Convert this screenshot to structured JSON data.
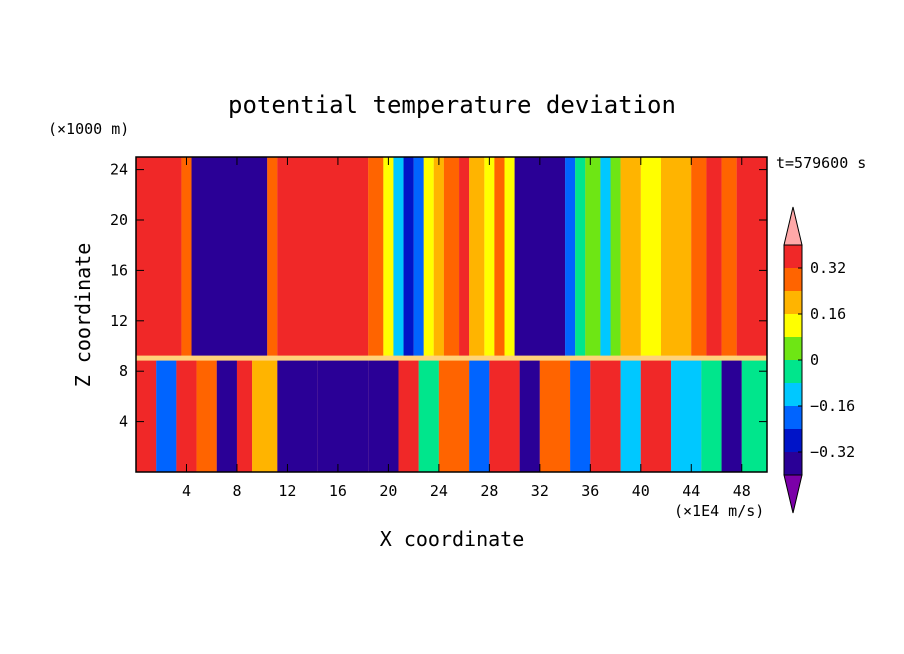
{
  "chart_data": {
    "type": "heatmap",
    "title": "potential temperature deviation",
    "xlabel": "X coordinate",
    "ylabel": "Z coordinate",
    "x_unit": "(×1E4 m/s)",
    "y_unit": "(×1000 m)",
    "time_label": "t=579600 s",
    "xlim": [
      0,
      50
    ],
    "ylim": [
      0,
      25
    ],
    "x_ticks": [
      4,
      8,
      12,
      16,
      20,
      24,
      28,
      32,
      36,
      40,
      44,
      48
    ],
    "y_ticks": [
      4,
      8,
      12,
      16,
      20,
      24
    ],
    "colorbar": {
      "levels": [
        -0.4,
        -0.32,
        -0.24,
        -0.16,
        -0.08,
        0,
        0.08,
        0.16,
        0.24,
        0.32,
        0.4
      ],
      "colors": [
        "#7b00a8",
        "#2a0096",
        "#0014c8",
        "#0064ff",
        "#00c8ff",
        "#00e68c",
        "#6ee614",
        "#ffff00",
        "#ffb400",
        "#ff6400",
        "#f02828",
        "#ffa8a8"
      ],
      "tick_labels": [
        "0.32",
        "0.16",
        "0",
        "-0.16",
        "-0.32"
      ],
      "tick_values": [
        0.32,
        0.16,
        0,
        -0.16,
        -0.32
      ],
      "extend": "both"
    },
    "upper_layer": {
      "z_range": [
        9,
        25
      ],
      "columns": [
        {
          "x": [
            0,
            3.6
          ],
          "value": 0.36
        },
        {
          "x": [
            3.6,
            4.4
          ],
          "value": 0.3
        },
        {
          "x": [
            4.4,
            10.4
          ],
          "value": -0.4
        },
        {
          "x": [
            10.4,
            11.2
          ],
          "value": 0.25
        },
        {
          "x": [
            11.2,
            18.4
          ],
          "value": 0.36
        },
        {
          "x": [
            18.4,
            19.6
          ],
          "value": 0.3
        },
        {
          "x": [
            19.6,
            20.4
          ],
          "value": 0.14
        },
        {
          "x": [
            20.4,
            21.2
          ],
          "value": -0.1
        },
        {
          "x": [
            21.2,
            22.0
          ],
          "value": -0.32
        },
        {
          "x": [
            22.0,
            22.8
          ],
          "value": -0.18
        },
        {
          "x": [
            22.8,
            23.6
          ],
          "value": 0.08
        },
        {
          "x": [
            23.6,
            24.4
          ],
          "value": 0.2
        },
        {
          "x": [
            24.4,
            25.6
          ],
          "value": 0.3
        },
        {
          "x": [
            25.6,
            26.4
          ],
          "value": 0.37
        },
        {
          "x": [
            26.4,
            27.6
          ],
          "value": 0.2
        },
        {
          "x": [
            27.6,
            28.4
          ],
          "value": 0.12
        },
        {
          "x": [
            28.4,
            29.2
          ],
          "value": 0.26
        },
        {
          "x": [
            29.2,
            30.0
          ],
          "value": 0.1
        },
        {
          "x": [
            30.0,
            34.0
          ],
          "value": -0.4
        },
        {
          "x": [
            34.0,
            34.8
          ],
          "value": -0.2
        },
        {
          "x": [
            34.8,
            35.6
          ],
          "value": -0.08
        },
        {
          "x": [
            35.6,
            36.8
          ],
          "value": 0.04
        },
        {
          "x": [
            36.8,
            37.6
          ],
          "value": -0.1
        },
        {
          "x": [
            37.6,
            38.4
          ],
          "value": 0.06
        },
        {
          "x": [
            38.4,
            40.0
          ],
          "value": 0.2
        },
        {
          "x": [
            40.0,
            41.6
          ],
          "value": 0.12
        },
        {
          "x": [
            41.6,
            44.0
          ],
          "value": 0.2
        },
        {
          "x": [
            44.0,
            45.2
          ],
          "value": 0.26
        },
        {
          "x": [
            45.2,
            46.4
          ],
          "value": 0.32
        },
        {
          "x": [
            46.4,
            47.6
          ],
          "value": 0.3
        },
        {
          "x": [
            47.6,
            50.0
          ],
          "value": 0.36
        }
      ]
    },
    "interface_z": 9,
    "lower_layer": {
      "z_range": [
        0,
        9
      ],
      "columns": [
        {
          "x": [
            0,
            1.6
          ],
          "value": 0.36
        },
        {
          "x": [
            1.6,
            3.2
          ],
          "value": -0.24
        },
        {
          "x": [
            3.2,
            4.8
          ],
          "value": 0.36
        },
        {
          "x": [
            4.8,
            6.4
          ],
          "value": 0.3
        },
        {
          "x": [
            6.4,
            8.0
          ],
          "value": -0.4
        },
        {
          "x": [
            8.0,
            9.2
          ],
          "value": 0.36
        },
        {
          "x": [
            9.2,
            11.2
          ],
          "value": 0.2
        },
        {
          "x": [
            11.2,
            14.4
          ],
          "value": -0.4
        },
        {
          "x": [
            14.4,
            18.4
          ],
          "value": -0.4
        },
        {
          "x": [
            18.4,
            20.8
          ],
          "value": -0.4
        },
        {
          "x": [
            20.8,
            22.4
          ],
          "value": 0.36
        },
        {
          "x": [
            22.4,
            24.0
          ],
          "value": -0.08
        },
        {
          "x": [
            24.0,
            26.4
          ],
          "value": 0.3
        },
        {
          "x": [
            26.4,
            28.0
          ],
          "value": -0.24
        },
        {
          "x": [
            28.0,
            30.4
          ],
          "value": 0.36
        },
        {
          "x": [
            30.4,
            32.0
          ],
          "value": -0.4
        },
        {
          "x": [
            32.0,
            34.4
          ],
          "value": 0.3
        },
        {
          "x": [
            34.4,
            36.0
          ],
          "value": -0.24
        },
        {
          "x": [
            36.0,
            38.4
          ],
          "value": 0.36
        },
        {
          "x": [
            38.4,
            40.0
          ],
          "value": -0.16
        },
        {
          "x": [
            40.0,
            42.4
          ],
          "value": 0.36
        },
        {
          "x": [
            42.4,
            44.8
          ],
          "value": -0.16
        },
        {
          "x": [
            44.8,
            46.4
          ],
          "value": -0.08
        },
        {
          "x": [
            46.4,
            48.0
          ],
          "value": -0.4
        },
        {
          "x": [
            48.0,
            50.0
          ],
          "value": -0.08
        }
      ]
    }
  }
}
